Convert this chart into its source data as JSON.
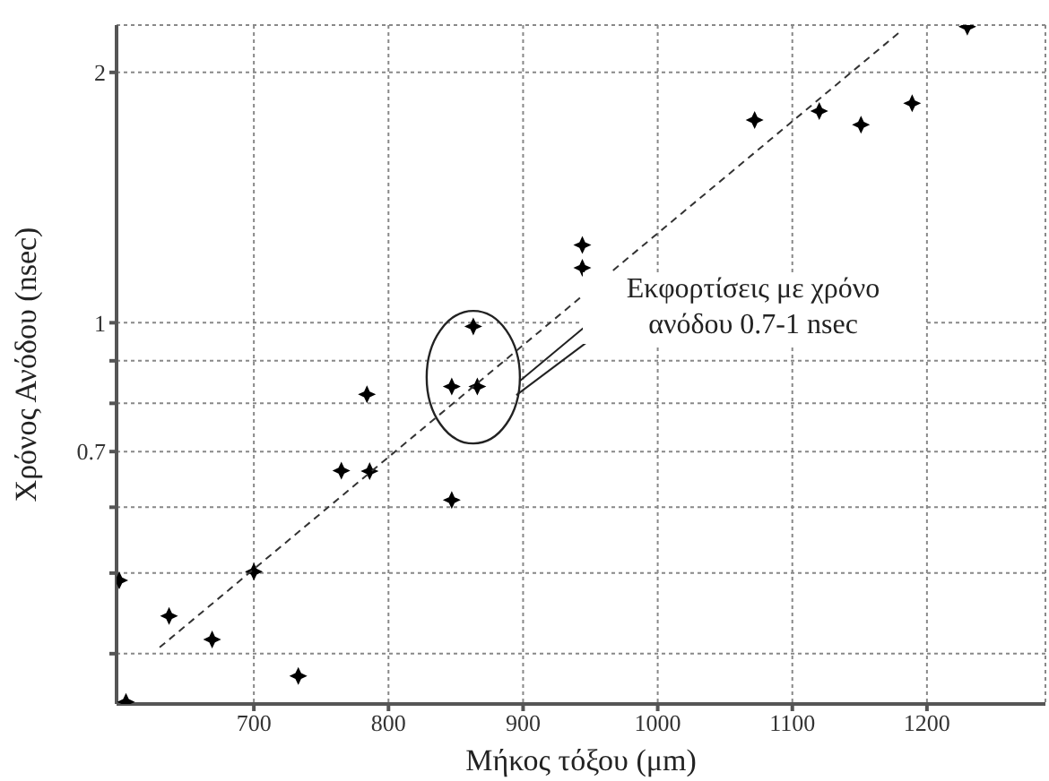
{
  "chart_data": {
    "type": "scatter",
    "xlabel": "Μήκος τόξου (μm)",
    "ylabel": "Χρόνος Ανόδου (nsec)",
    "log": "y",
    "grid": true,
    "marker": "star",
    "xlim": [
      598,
      1288
    ],
    "xticks": [
      700,
      800,
      900,
      1000,
      1100,
      1200
    ],
    "ylim": [
      0.348,
      2.28
    ],
    "yticks": [
      {
        "value": 0.4,
        "label": null
      },
      {
        "value": 0.5,
        "label": null
      },
      {
        "value": 0.6,
        "label": null
      },
      0.7,
      {
        "value": 0.8,
        "label": null
      },
      {
        "value": 0.9,
        "label": null
      },
      1,
      2
    ],
    "series": [
      {
        "color": "#000000",
        "x": [
          600,
          605,
          637,
          669,
          700,
          733,
          765,
          784,
          786,
          847,
          847,
          866,
          863,
          944,
          944,
          1072,
          1120,
          1151,
          1189,
          1230
        ],
        "values": [
          0.49,
          0.35,
          0.444,
          0.416,
          0.502,
          0.376,
          0.664,
          0.82,
          0.663,
          0.612,
          0.838,
          0.838,
          0.99,
          1.24,
          1.164,
          1.753,
          1.797,
          1.73,
          1.836,
          2.27
        ]
      },
      {
        "type": "line",
        "color": "#333333",
        "line_style": "dashed",
        "marker": "none",
        "x": [
          630,
          1181
        ],
        "values": [
          0.407,
          2.245
        ]
      }
    ],
    "annotations": [
      "Εκφορτίσεις με χρόνο ανόδου 0.7-1 nsec"
    ]
  }
}
